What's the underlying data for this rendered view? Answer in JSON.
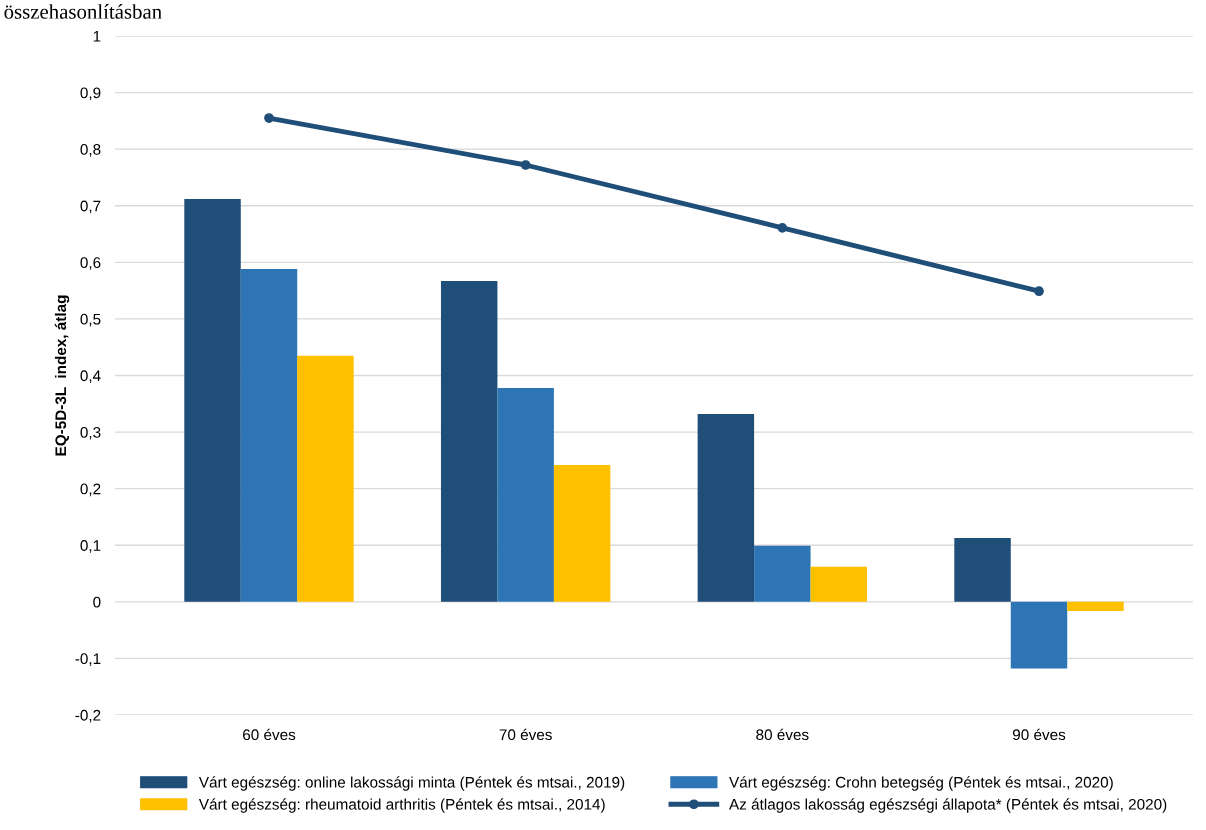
{
  "chart_data": {
    "type": "bar",
    "title": "összehasonlításban",
    "ylabel": "EQ-5D-3L  index, átlag",
    "categories": [
      "60 éves",
      "70 éves",
      "80 éves",
      "90 éves"
    ],
    "series": [
      {
        "name": "Várt egészség: online lakossági minta (Péntek és mtsai., 2019)",
        "color": "#1f4e79",
        "values": [
          0.712,
          0.567,
          0.332,
          0.113
        ]
      },
      {
        "name": "Várt egészség: Crohn betegség (Péntek és mtsai., 2020)",
        "color": "#2e75b6",
        "values": [
          0.588,
          0.378,
          0.099,
          -0.118
        ]
      },
      {
        "name": "Várt egészség: rheumatoid arthritis (Péntek és mtsai., 2014)",
        "color": "#ffc000",
        "values": [
          0.435,
          0.242,
          0.062,
          -0.016
        ]
      },
      {
        "name": "Az átlagos lakosság egészségi állapota* (Péntek és mtsai, 2020)",
        "color": "#1f4e79",
        "type": "line",
        "marker": "circle",
        "values": [
          0.855,
          0.772,
          0.661,
          0.549
        ]
      }
    ],
    "ylim": [
      -0.2,
      1
    ],
    "yticks": [
      {
        "value": -0.2,
        "label": "-0,2"
      },
      {
        "value": -0.1,
        "label": "-0,1"
      },
      0,
      {
        "value": 0.1,
        "label": "0,1"
      },
      {
        "value": 0.2,
        "label": "0,2"
      },
      {
        "value": 0.3,
        "label": "0,3"
      },
      {
        "value": 0.4,
        "label": "0,4"
      },
      {
        "value": 0.5,
        "label": "0,5"
      },
      {
        "value": 0.6,
        "label": "0,6"
      },
      {
        "value": 0.7,
        "label": "0,7"
      },
      {
        "value": 0.8,
        "label": "0,8"
      },
      {
        "value": 0.9,
        "label": "0,9"
      },
      1
    ],
    "grid": "y",
    "legend": "bottom"
  }
}
